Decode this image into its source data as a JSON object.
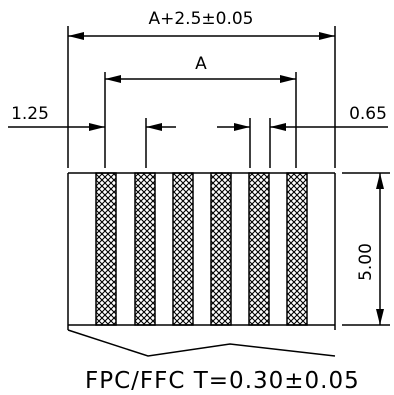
{
  "dimensions": {
    "total_width": "A+2.5±0.05",
    "pitch_span": "A",
    "left_margin": "1.25",
    "strip_width": "0.65",
    "height": "5.00"
  },
  "caption": "FPC/FFC T=0.30±0.05",
  "conductor_count": 6,
  "colors": {
    "ink": "#000000",
    "background": "#ffffff"
  }
}
